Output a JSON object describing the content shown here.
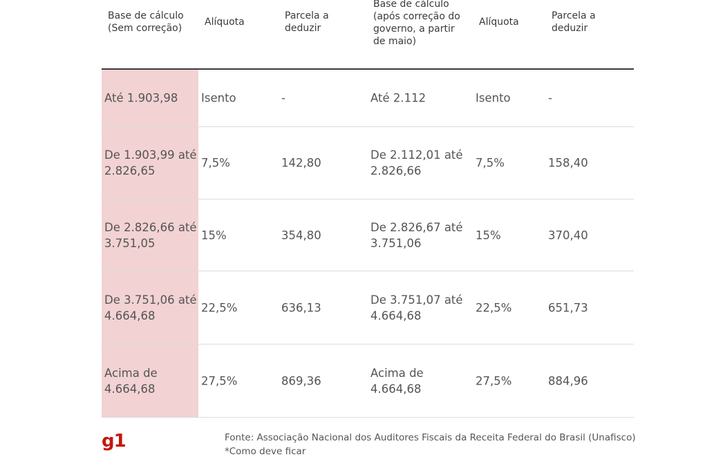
{
  "headers": [
    "Base de cálculo (Sem correção)",
    "Alíquota",
    "Parcela a deduzir",
    "Base de cálculo (após correção do governo, a partir de maio)",
    "Alíquota",
    "Parcela a deduzir"
  ],
  "rows": [
    [
      "Até 1.903,98",
      "Isento",
      "-",
      "Até 2.112",
      "Isento",
      "-"
    ],
    [
      "De 1.903,99 até 2.826,65",
      "7,5%",
      "142,80",
      "De 2.112,01 até 2.826,66",
      "7,5%",
      "158,40"
    ],
    [
      "De 2.826,66 até 3.751,05",
      "15%",
      "354,80",
      "De 2.826,67 até 3.751,06",
      "15%",
      "370,40"
    ],
    [
      "De 3.751,06 até 4.664,68",
      "22,5%",
      "636,13",
      "De 3.751,07 até 4.664,68",
      "22,5%",
      "651,73"
    ],
    [
      "Acima de 4.664,68",
      "27,5%",
      "869,36",
      "Acima de 4.664,68",
      "27,5%",
      "884,96"
    ]
  ],
  "footer": {
    "logo": "g1",
    "source": "Fonte: Associação Nacional dos Auditores Fiscais da Receita Federal do Brasil (Unafisco)",
    "note": "*Como deve ficar"
  },
  "colors": {
    "highlight": "#f2d2d3",
    "brand": "#c4170c"
  }
}
